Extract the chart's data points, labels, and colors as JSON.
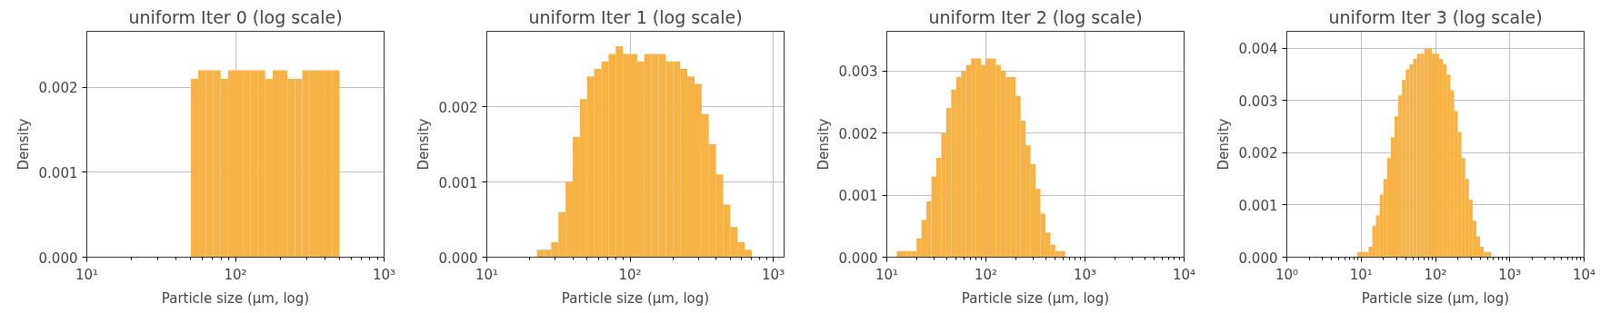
{
  "chart_data": [
    {
      "type": "histogram",
      "title": "uniform Iter 0 (log scale)",
      "xlabel": "Particle size (µm, log)",
      "ylabel": "Density",
      "log": "x",
      "grid": true,
      "color": "#f6b244",
      "bins": [
        50.12,
        56.23,
        63.1,
        70.79,
        79.43,
        89.13,
        100,
        112.2,
        125.9,
        141.3,
        158.5,
        177.8,
        199.5,
        223.9,
        251.2,
        281.8,
        316.2,
        354.8,
        398.1,
        446.7,
        501.2
      ],
      "values": [
        0.0021,
        0.0022,
        0.0022,
        0.0022,
        0.0021,
        0.0022,
        0.0022,
        0.0022,
        0.0022,
        0.0022,
        0.0021,
        0.0022,
        0.0022,
        0.0021,
        0.0021,
        0.0022,
        0.0022,
        0.0022,
        0.0022,
        0.0022
      ],
      "xlim": [
        10,
        1000
      ],
      "ylim": [
        0,
        0.00266
      ],
      "xticks": [
        {
          "value": 10,
          "label": "10¹"
        },
        {
          "value": 100,
          "label": "10²"
        },
        {
          "value": 1000,
          "label": "10³"
        }
      ],
      "yticks": [
        {
          "value": 0,
          "label": "0.000"
        },
        {
          "value": 0.001,
          "label": "0.001"
        },
        {
          "value": 0.002,
          "label": "0.002"
        }
      ]
    },
    {
      "type": "histogram",
      "title": "uniform Iter 1 (log scale)",
      "xlabel": "Particle size (µm, log)",
      "ylabel": "Density",
      "log": "x",
      "grid": true,
      "color": "#f6b244",
      "bins": [
        17.78,
        19.95,
        22.39,
        25.12,
        28.18,
        31.62,
        35.48,
        39.81,
        44.67,
        50.12,
        56.23,
        63.1,
        70.79,
        79.43,
        89.13,
        100,
        112.2,
        125.9,
        141.3,
        158.5,
        177.8,
        199.5,
        223.9,
        251.2,
        281.8,
        316.2,
        354.8,
        398.1,
        446.7,
        501.2,
        562.3,
        631.0,
        707.9,
        794.3,
        891.3
      ],
      "values": [
        0,
        0,
        0.0001,
        0.0001,
        0.0002,
        0.0006,
        0.001,
        0.0016,
        0.0021,
        0.0024,
        0.0025,
        0.0026,
        0.0027,
        0.0028,
        0.0027,
        0.0027,
        0.0026,
        0.0027,
        0.0027,
        0.0027,
        0.0026,
        0.0026,
        0.0025,
        0.0024,
        0.0023,
        0.0019,
        0.0015,
        0.0011,
        0.0007,
        0.0004,
        0.0002,
        0.0001,
        0,
        0
      ],
      "xlim": [
        10,
        1190
      ],
      "ylim": [
        0,
        0.003
      ],
      "xticks": [
        {
          "value": 10,
          "label": "10¹"
        },
        {
          "value": 100,
          "label": "10²"
        },
        {
          "value": 1000,
          "label": "10³"
        }
      ],
      "yticks": [
        {
          "value": 0,
          "label": "0.000"
        },
        {
          "value": 0.001,
          "label": "0.001"
        },
        {
          "value": 0.002,
          "label": "0.002"
        }
      ]
    },
    {
      "type": "histogram",
      "title": "uniform Iter 2 (log scale)",
      "xlabel": "Particle size (µm, log)",
      "ylabel": "Density",
      "log": "x",
      "grid": true,
      "color": "#f6b244",
      "bins": [
        12.59,
        14.13,
        15.85,
        17.78,
        19.95,
        22.39,
        25.12,
        28.18,
        31.62,
        35.48,
        39.81,
        44.67,
        50.12,
        56.23,
        63.1,
        70.79,
        79.43,
        89.13,
        100,
        112.2,
        125.9,
        141.3,
        158.5,
        177.8,
        199.5,
        223.9,
        251.2,
        281.8,
        316.2,
        354.8,
        398.1,
        446.7,
        501.2,
        562.3,
        631.0,
        707.9,
        794.3
      ],
      "values": [
        0.0001,
        0.0001,
        0.0001,
        0.0001,
        0.0003,
        0.0006,
        0.0009,
        0.0013,
        0.0016,
        0.002,
        0.0024,
        0.0027,
        0.0029,
        0.003,
        0.0031,
        0.0032,
        0.0032,
        0.0031,
        0.0032,
        0.0032,
        0.0031,
        0.003,
        0.0029,
        0.0029,
        0.0026,
        0.0022,
        0.0018,
        0.0015,
        0.0011,
        0.0007,
        0.0004,
        0.0002,
        0.0001,
        0.0001,
        0,
        0
      ],
      "xlim": [
        10,
        10000
      ],
      "ylim": [
        0,
        0.00364
      ],
      "xticks": [
        {
          "value": 10,
          "label": "10¹"
        },
        {
          "value": 100,
          "label": "10²"
        },
        {
          "value": 1000,
          "label": "10³"
        },
        {
          "value": 10000,
          "label": "10⁴"
        }
      ],
      "yticks": [
        {
          "value": 0,
          "label": "0.000"
        },
        {
          "value": 0.001,
          "label": "0.001"
        },
        {
          "value": 0.002,
          "label": "0.002"
        },
        {
          "value": 0.003,
          "label": "0.003"
        }
      ]
    },
    {
      "type": "histogram",
      "title": "uniform Iter 3 (log scale)",
      "xlabel": "Particle size (µm, log)",
      "ylabel": "Density",
      "log": "x",
      "grid": true,
      "color": "#f6b244",
      "bins": [
        8.91,
        10,
        11.22,
        12.59,
        14.13,
        15.85,
        17.78,
        19.95,
        22.39,
        25.12,
        28.18,
        31.62,
        35.48,
        39.81,
        44.67,
        50.12,
        56.23,
        63.1,
        70.79,
        79.43,
        89.13,
        100,
        112.2,
        125.9,
        141.3,
        158.5,
        177.8,
        199.5,
        223.9,
        251.2,
        281.8,
        316.2,
        354.8,
        398.1,
        446.7,
        501.2,
        562.3,
        631.0,
        707.9
      ],
      "values": [
        0.0001,
        0.0001,
        0.0001,
        0.0002,
        0.0006,
        0.0008,
        0.0012,
        0.0015,
        0.0019,
        0.0023,
        0.0027,
        0.0031,
        0.0034,
        0.0036,
        0.0037,
        0.0038,
        0.0039,
        0.0039,
        0.004,
        0.004,
        0.0039,
        0.0039,
        0.0038,
        0.0037,
        0.0035,
        0.0032,
        0.0028,
        0.0024,
        0.0019,
        0.0015,
        0.0011,
        0.0007,
        0.0004,
        0.0002,
        0.0001,
        0.0001,
        0,
        0
      ],
      "xlim": [
        1,
        10000
      ],
      "ylim": [
        0,
        0.00433
      ],
      "xticks": [
        {
          "value": 1,
          "label": "10⁰"
        },
        {
          "value": 10,
          "label": "10¹"
        },
        {
          "value": 100,
          "label": "10²"
        },
        {
          "value": 1000,
          "label": "10³"
        },
        {
          "value": 10000,
          "label": "10⁴"
        }
      ],
      "yticks": [
        {
          "value": 0,
          "label": "0.000"
        },
        {
          "value": 0.001,
          "label": "0.001"
        },
        {
          "value": 0.002,
          "label": "0.002"
        },
        {
          "value": 0.003,
          "label": "0.003"
        },
        {
          "value": 0.004,
          "label": "0.004"
        }
      ]
    }
  ]
}
